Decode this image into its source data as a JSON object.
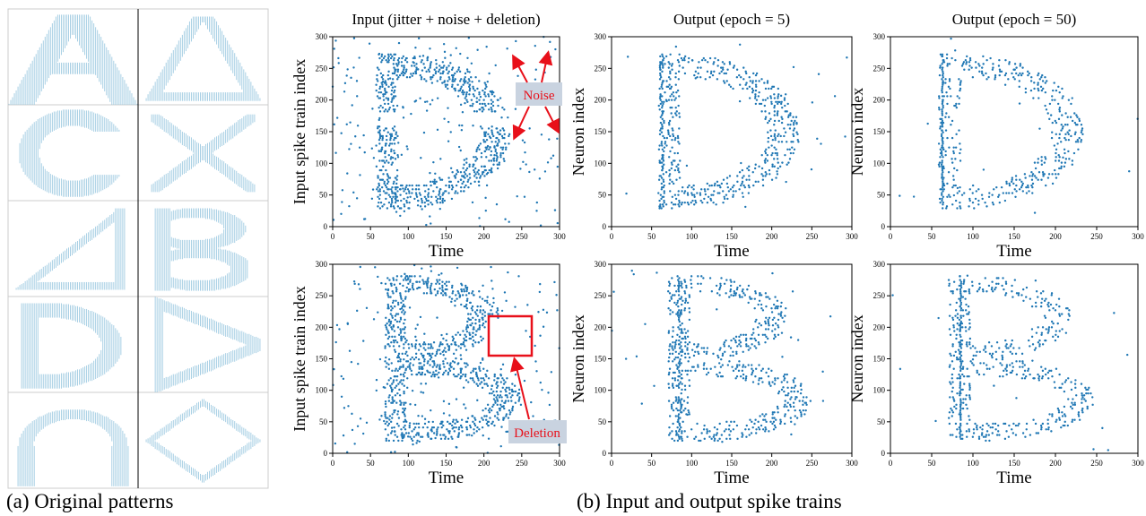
{
  "captions": {
    "a": "(a) Original patterns",
    "b": "(b) Input and output spike trains"
  },
  "colors": {
    "spike": "#1f77b4",
    "pattern": "#9ecae1",
    "annotation": "#e8101a",
    "annotation_box": "#c9d3e0",
    "grid_border": "#cccccc"
  },
  "patterns": {
    "shapes": [
      "letter-A",
      "triangle-up",
      "letter-C",
      "cross-X",
      "triangle-left-right-angle",
      "letter-B",
      "letter-D",
      "triangle-right",
      "arch-n",
      "diamond"
    ]
  },
  "annotations": {
    "noise": "Noise",
    "deletion": "Deletion"
  },
  "chart_data": [
    {
      "type": "scatter",
      "title": "Input (jitter + noise + deletion)",
      "xlabel": "Time",
      "ylabel": "Input spike train index",
      "xlim": [
        0,
        300
      ],
      "ylim": [
        0,
        300
      ],
      "xticks": [
        0,
        50,
        100,
        150,
        200,
        250,
        300
      ],
      "yticks": [
        0,
        50,
        100,
        150,
        200,
        250,
        300
      ],
      "pattern": "D",
      "mode": "input",
      "series": [
        {
          "values": "scattered spikes tracing letter D with jitter, noise and a deleted band (160-180)"
        }
      ]
    },
    {
      "type": "scatter",
      "title": "Output (epoch = 5)",
      "xlabel": "Time",
      "ylabel": "Neuron index",
      "xlim": [
        0,
        300
      ],
      "ylim": [
        0,
        300
      ],
      "xticks": [
        0,
        50,
        100,
        150,
        200,
        250,
        300
      ],
      "yticks": [
        0,
        50,
        100,
        150,
        200,
        250,
        300
      ],
      "pattern": "D",
      "mode": "out5",
      "series": [
        {
          "values": "output spikes tracing letter D, loosely aligned"
        }
      ]
    },
    {
      "type": "scatter",
      "title": "Output (epoch = 50)",
      "xlabel": "Time",
      "ylabel": "Neuron index",
      "xlim": [
        0,
        300
      ],
      "ylim": [
        0,
        300
      ],
      "xticks": [
        0,
        50,
        100,
        150,
        200,
        250,
        300
      ],
      "yticks": [
        0,
        50,
        100,
        150,
        200,
        250,
        300
      ],
      "pattern": "D",
      "mode": "out50",
      "series": [
        {
          "values": "output spikes tracing letter D, tightly aligned"
        }
      ]
    },
    {
      "type": "scatter",
      "title": "",
      "xlabel": "Time",
      "ylabel": "Input spike train index",
      "xlim": [
        0,
        300
      ],
      "ylim": [
        0,
        300
      ],
      "xticks": [
        0,
        50,
        100,
        150,
        200,
        250,
        300
      ],
      "yticks": [
        0,
        50,
        100,
        150,
        200,
        250,
        300
      ],
      "pattern": "B",
      "mode": "input",
      "series": [
        {
          "values": "scattered spikes tracing letter B with noise and a deleted region (x 200-250, y 155-215)"
        }
      ]
    },
    {
      "type": "scatter",
      "title": "",
      "xlabel": "Time",
      "ylabel": "Neuron index",
      "xlim": [
        0,
        300
      ],
      "ylim": [
        0,
        300
      ],
      "xticks": [
        0,
        50,
        100,
        150,
        200,
        250,
        300
      ],
      "yticks": [
        0,
        50,
        100,
        150,
        200,
        250,
        300
      ],
      "pattern": "B",
      "mode": "out5",
      "series": [
        {
          "values": "output spikes tracing letter B, loosely aligned"
        }
      ]
    },
    {
      "type": "scatter",
      "title": "",
      "xlabel": "Time",
      "ylabel": "Neuron index",
      "xlim": [
        0,
        300
      ],
      "ylim": [
        0,
        300
      ],
      "xticks": [
        0,
        50,
        100,
        150,
        200,
        250,
        300
      ],
      "yticks": [
        0,
        50,
        100,
        150,
        200,
        250,
        300
      ],
      "pattern": "B",
      "mode": "out50",
      "series": [
        {
          "values": "output spikes tracing letter B, tightly aligned"
        }
      ]
    }
  ]
}
